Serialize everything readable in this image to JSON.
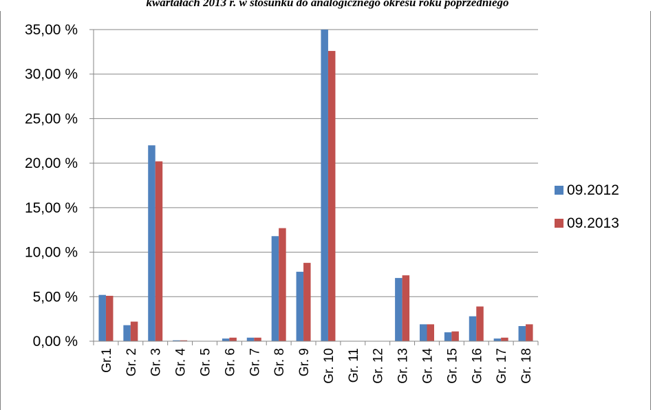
{
  "caption": "kwartałach 2013 r. w stosunku do analogicznego okresu roku poprzedniego",
  "chart_data": {
    "type": "bar",
    "title": "",
    "xlabel": "",
    "ylabel": "",
    "ylim": [
      0,
      35
    ],
    "y_ticks": [
      "0,00 %",
      "5,00 %",
      "10,00 %",
      "15,00 %",
      "20,00 %",
      "25,00 %",
      "30,00 %",
      "35,00 %"
    ],
    "y_tick_values": [
      0,
      5,
      10,
      15,
      20,
      25,
      30,
      35
    ],
    "grid": true,
    "legend_position": "right",
    "categories": [
      "Gr.1",
      "Gr. 2",
      "Gr. 3",
      "Gr. 4",
      "Gr. 5",
      "Gr. 6",
      "Gr. 7",
      "Gr. 8",
      "Gr. 9",
      "Gr. 10",
      "Gr. 11",
      "Gr. 12",
      "Gr. 13",
      "Gr. 14",
      "Gr. 15",
      "Gr. 16",
      "Gr. 17",
      "Gr. 18"
    ],
    "series": [
      {
        "name": "09.2012",
        "color": "#4F81BD",
        "values": [
          5.2,
          1.8,
          22.0,
          0.1,
          0.0,
          0.3,
          0.4,
          11.8,
          7.8,
          35.0,
          0.0,
          0.0,
          7.1,
          1.9,
          1.0,
          2.8,
          0.3,
          1.7
        ]
      },
      {
        "name": "09.2013",
        "color": "#C0504D",
        "values": [
          5.1,
          2.2,
          20.2,
          0.1,
          0.0,
          0.4,
          0.4,
          12.7,
          8.8,
          32.6,
          0.0,
          0.0,
          7.4,
          1.9,
          1.1,
          3.9,
          0.4,
          1.9
        ]
      }
    ]
  }
}
